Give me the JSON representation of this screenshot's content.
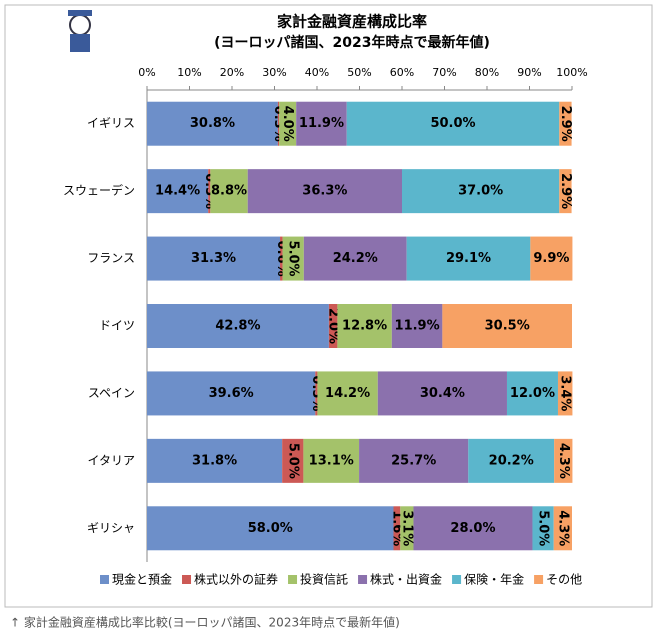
{
  "chart_data": {
    "type": "stacked_barh",
    "title": "家計金融資産構成比率",
    "subtitle": "(ヨーロッパ諸国、2023年時点で最新年値)",
    "categories": [
      "イギリス",
      "スウェーデン",
      "フランス",
      "ドイツ",
      "スペイン",
      "イタリア",
      "ギリシャ"
    ],
    "series": [
      {
        "name": "現金と預金",
        "color": "#6d8fc9",
        "values": [
          30.8,
          14.4,
          31.3,
          42.8,
          39.6,
          31.8,
          58.0
        ],
        "value_labels": [
          "30.8%",
          "14.4%",
          "31.3%",
          "42.8%",
          "39.6%",
          "31.8%",
          "58.0%"
        ]
      },
      {
        "name": "株式以外の証券",
        "color": "#cc5955",
        "values": [
          0.3,
          0.5,
          0.6,
          2.0,
          0.5,
          5.0,
          1.6
        ],
        "value_labels": [
          "0.3%",
          "0.5%",
          "0.6%",
          "2.0%",
          "0.5%",
          "5.0%",
          "1.6%"
        ]
      },
      {
        "name": "投資信託",
        "color": "#a4c26a",
        "values": [
          4.0,
          8.8,
          5.0,
          12.8,
          14.2,
          13.1,
          3.1
        ],
        "value_labels": [
          "4.0%",
          "8.8%",
          "5.0%",
          "12.8%",
          "14.2%",
          "13.1%",
          "3.1%"
        ]
      },
      {
        "name": "株式・出資金",
        "color": "#8b71ad",
        "values": [
          11.9,
          36.3,
          24.2,
          11.9,
          30.4,
          25.7,
          28.0
        ],
        "value_labels": [
          "11.9%",
          "36.3%",
          "24.2%",
          "11.9%",
          "30.4%",
          "25.7%",
          "28.0%"
        ]
      },
      {
        "name": "保険・年金",
        "color": "#5bb6cc",
        "values": [
          50.0,
          37.0,
          29.1,
          null,
          12.0,
          20.2,
          5.0
        ],
        "value_labels": [
          "50.0%",
          "37.0%",
          "29.1%",
          null,
          "12.0%",
          "20.2%",
          "5.0%"
        ]
      },
      {
        "name": "その他",
        "color": "#f7a164",
        "values": [
          2.9,
          2.9,
          9.9,
          30.5,
          3.4,
          4.3,
          4.3
        ],
        "value_labels": [
          "2.9%",
          "2.9%",
          "9.9%",
          "30.5%",
          "3.4%",
          "4.3%",
          "4.3%"
        ]
      }
    ],
    "xlim": [
      0,
      100
    ],
    "xticks": [
      {
        "value": 0,
        "label": "0%"
      },
      {
        "value": 10,
        "label": "10%"
      },
      {
        "value": 20,
        "label": "20%"
      },
      {
        "value": 30,
        "label": "30%"
      },
      {
        "value": 40,
        "label": "40%"
      },
      {
        "value": 50,
        "label": "50%"
      },
      {
        "value": 60,
        "label": "60%"
      },
      {
        "value": 70,
        "label": "70%"
      },
      {
        "value": 80,
        "label": "80%"
      },
      {
        "value": 90,
        "label": "90%"
      },
      {
        "value": 100,
        "label": "100%"
      }
    ],
    "grid": false,
    "legend": "bottom",
    "caption": "↑ 家計金融資産構成比率比較(ヨーロッパ諸国、2023年時点で最新年値)"
  }
}
